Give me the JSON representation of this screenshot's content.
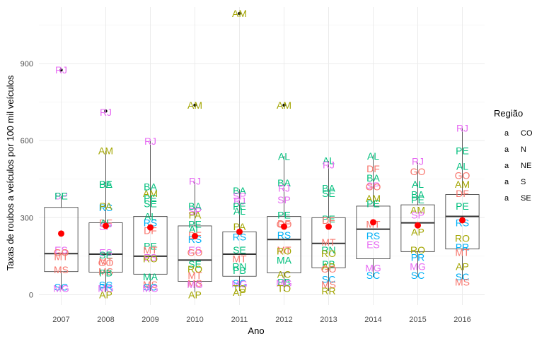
{
  "chart_data": {
    "type": "box",
    "xlabel": "Ano",
    "ylabel": "Taxas de roubos  a veículos por 100 mil veículos",
    "ylim": [
      -40,
      1120
    ],
    "y_ticks": [
      0,
      300,
      600,
      900
    ],
    "categories": [
      "2007",
      "2008",
      "2009",
      "2010",
      "2011",
      "2012",
      "2013",
      "2014",
      "2015",
      "2016"
    ],
    "grid": true,
    "legend": {
      "title": "Região",
      "position": "right",
      "items": [
        {
          "key": "CO",
          "label": "CO",
          "color": "#F8766D"
        },
        {
          "key": "N",
          "label": "N",
          "color": "#A3A500"
        },
        {
          "key": "NE",
          "label": "NE",
          "color": "#00BF7D"
        },
        {
          "key": "S",
          "label": "S",
          "color": "#00B0F6"
        },
        {
          "key": "SE",
          "label": "SE",
          "color": "#E76BF3"
        }
      ]
    },
    "boxes": [
      {
        "year": "2007",
        "q1": 90,
        "median": 160,
        "q3": 340,
        "whisker_low": 20,
        "whisker_high": 385,
        "mean": 238,
        "outliers": [
          875
        ]
      },
      {
        "year": "2008",
        "q1": 88,
        "median": 158,
        "q3": 280,
        "whisker_low": 10,
        "whisker_high": 560,
        "mean": 268,
        "outliers": [
          715
        ]
      },
      {
        "year": "2009",
        "q1": 80,
        "median": 150,
        "q3": 305,
        "whisker_low": 15,
        "whisker_high": 598,
        "mean": 262,
        "outliers": []
      },
      {
        "year": "2010",
        "q1": 52,
        "median": 135,
        "q3": 268,
        "whisker_low": 10,
        "whisker_high": 440,
        "mean": 228,
        "outliers": [
          738
        ]
      },
      {
        "year": "2011",
        "q1": 72,
        "median": 158,
        "q3": 245,
        "whisker_low": 15,
        "whisker_high": 410,
        "mean": 245,
        "outliers": [
          1095
        ]
      },
      {
        "year": "2012",
        "q1": 85,
        "median": 215,
        "q3": 305,
        "whisker_low": 15,
        "whisker_high": 540,
        "mean": 265,
        "outliers": [
          738
        ]
      },
      {
        "year": "2013",
        "q1": 105,
        "median": 200,
        "q3": 300,
        "whisker_low": 15,
        "whisker_high": 520,
        "mean": 265,
        "outliers": []
      },
      {
        "year": "2014",
        "q1": 140,
        "median": 255,
        "q3": 345,
        "whisker_low": 70,
        "whisker_high": 545,
        "mean": 282,
        "outliers": []
      },
      {
        "year": "2015",
        "q1": 168,
        "median": 280,
        "q3": 350,
        "whisker_low": 70,
        "whisker_high": 515,
        "mean": 270,
        "outliers": []
      },
      {
        "year": "2016",
        "q1": 178,
        "median": 305,
        "q3": 390,
        "whisker_low": 60,
        "whisker_high": 648,
        "mean": 290,
        "outliers": []
      }
    ],
    "points": [
      {
        "year": "2007",
        "state": "RJ",
        "region": "SE",
        "value": 875
      },
      {
        "year": "2007",
        "state": "SP",
        "region": "SE",
        "value": 385
      },
      {
        "year": "2007",
        "state": "PE",
        "region": "NE",
        "value": 385
      },
      {
        "year": "2007",
        "state": "ES",
        "region": "SE",
        "value": 175
      },
      {
        "year": "2007",
        "state": "MT",
        "region": "CO",
        "value": 148
      },
      {
        "year": "2007",
        "state": "GO",
        "region": "CO",
        "value": 165
      },
      {
        "year": "2007",
        "state": "MS",
        "region": "CO",
        "value": 98
      },
      {
        "year": "2007",
        "state": "SC",
        "region": "S",
        "value": 30
      },
      {
        "year": "2007",
        "state": "MG",
        "region": "SE",
        "value": 25
      },
      {
        "year": "2008",
        "state": "RJ",
        "region": "SE",
        "value": 710
      },
      {
        "year": "2008",
        "state": "AM",
        "region": "N",
        "value": 560
      },
      {
        "year": "2008",
        "state": "BA",
        "region": "NE",
        "value": 430
      },
      {
        "year": "2008",
        "state": "PE",
        "region": "NE",
        "value": 430
      },
      {
        "year": "2008",
        "state": "RS",
        "region": "S",
        "value": 340
      },
      {
        "year": "2008",
        "state": "PA",
        "region": "N",
        "value": 345
      },
      {
        "year": "2008",
        "state": "DF",
        "region": "CO",
        "value": 280
      },
      {
        "year": "2008",
        "state": "AL",
        "region": "NE",
        "value": 280
      },
      {
        "year": "2008",
        "state": "SP",
        "region": "SE",
        "value": 265
      },
      {
        "year": "2008",
        "state": "ES",
        "region": "SE",
        "value": 165
      },
      {
        "year": "2008",
        "state": "SE",
        "region": "NE",
        "value": 155
      },
      {
        "year": "2008",
        "state": "MT",
        "region": "CO",
        "value": 130
      },
      {
        "year": "2008",
        "state": "GO",
        "region": "CO",
        "value": 125
      },
      {
        "year": "2008",
        "state": "MS",
        "region": "CO",
        "value": 90
      },
      {
        "year": "2008",
        "state": "PB",
        "region": "NE",
        "value": 85
      },
      {
        "year": "2008",
        "state": "SC",
        "region": "S",
        "value": 38
      },
      {
        "year": "2008",
        "state": "PR",
        "region": "S",
        "value": 30
      },
      {
        "year": "2008",
        "state": "MG",
        "region": "SE",
        "value": 25
      },
      {
        "year": "2008",
        "state": "AP",
        "region": "N",
        "value": 0
      },
      {
        "year": "2009",
        "state": "RJ",
        "region": "SE",
        "value": 598
      },
      {
        "year": "2009",
        "state": "BA",
        "region": "NE",
        "value": 420
      },
      {
        "year": "2009",
        "state": "AM",
        "region": "N",
        "value": 395
      },
      {
        "year": "2009",
        "state": "SE",
        "region": "NE",
        "value": 355
      },
      {
        "year": "2009",
        "state": "PE",
        "region": "NE",
        "value": 375
      },
      {
        "year": "2009",
        "state": "AL",
        "region": "NE",
        "value": 305
      },
      {
        "year": "2009",
        "state": "RS",
        "region": "S",
        "value": 280
      },
      {
        "year": "2009",
        "state": "DF",
        "region": "CO",
        "value": 250
      },
      {
        "year": "2009",
        "state": "PE",
        "region": "NE",
        "value": 190
      },
      {
        "year": "2009",
        "state": "MT",
        "region": "CO",
        "value": 175
      },
      {
        "year": "2009",
        "state": "ES",
        "region": "SE",
        "value": 145
      },
      {
        "year": "2009",
        "state": "RO",
        "region": "N",
        "value": 140
      },
      {
        "year": "2009",
        "state": "MA",
        "region": "NE",
        "value": 70
      },
      {
        "year": "2009",
        "state": "MS",
        "region": "CO",
        "value": 40
      },
      {
        "year": "2009",
        "state": "SC",
        "region": "S",
        "value": 30
      },
      {
        "year": "2009",
        "state": "MG",
        "region": "SE",
        "value": 25
      },
      {
        "year": "2010",
        "state": "AM",
        "region": "N",
        "value": 738
      },
      {
        "year": "2010",
        "state": "RJ",
        "region": "SE",
        "value": 442
      },
      {
        "year": "2010",
        "state": "BA",
        "region": "NE",
        "value": 345
      },
      {
        "year": "2010",
        "state": "SP",
        "region": "SE",
        "value": 325
      },
      {
        "year": "2010",
        "state": "PA",
        "region": "N",
        "value": 310
      },
      {
        "year": "2010",
        "state": "PE",
        "region": "NE",
        "value": 275
      },
      {
        "year": "2010",
        "state": "AL",
        "region": "NE",
        "value": 255
      },
      {
        "year": "2010",
        "state": "DF",
        "region": "CO",
        "value": 232
      },
      {
        "year": "2010",
        "state": "RS",
        "region": "S",
        "value": 215
      },
      {
        "year": "2010",
        "state": "ES",
        "region": "SE",
        "value": 175
      },
      {
        "year": "2010",
        "state": "GO",
        "region": "CO",
        "value": 165
      },
      {
        "year": "2010",
        "state": "SE",
        "region": "NE",
        "value": 120
      },
      {
        "year": "2010",
        "state": "RO",
        "region": "N",
        "value": 100
      },
      {
        "year": "2010",
        "state": "MT",
        "region": "CO",
        "value": 75
      },
      {
        "year": "2010",
        "state": "MS",
        "region": "CO",
        "value": 45
      },
      {
        "year": "2010",
        "state": "MG",
        "region": "SE",
        "value": 40
      },
      {
        "year": "2010",
        "state": "AP",
        "region": "N",
        "value": 0
      },
      {
        "year": "2011",
        "state": "AM",
        "region": "N",
        "value": 1095
      },
      {
        "year": "2011",
        "state": "BA",
        "region": "NE",
        "value": 405
      },
      {
        "year": "2011",
        "state": "SP",
        "region": "SE",
        "value": 385
      },
      {
        "year": "2011",
        "state": "RJ",
        "region": "SE",
        "value": 365
      },
      {
        "year": "2011",
        "state": "PE",
        "region": "NE",
        "value": 345
      },
      {
        "year": "2011",
        "state": "AL",
        "region": "NE",
        "value": 325
      },
      {
        "year": "2011",
        "state": "PA",
        "region": "N",
        "value": 265
      },
      {
        "year": "2011",
        "state": "RS",
        "region": "S",
        "value": 225
      },
      {
        "year": "2011",
        "state": "SE",
        "region": "NE",
        "value": 175
      },
      {
        "year": "2011",
        "state": "MT",
        "region": "CO",
        "value": 140
      },
      {
        "year": "2011",
        "state": "RN",
        "region": "NE",
        "value": 110
      },
      {
        "year": "2011",
        "state": "PB",
        "region": "NE",
        "value": 95
      },
      {
        "year": "2011",
        "state": "SC",
        "region": "S",
        "value": 45
      },
      {
        "year": "2011",
        "state": "MG",
        "region": "SE",
        "value": 42
      },
      {
        "year": "2011",
        "state": "TO",
        "region": "N",
        "value": 25
      },
      {
        "year": "2011",
        "state": "AP",
        "region": "N",
        "value": 10
      },
      {
        "year": "2012",
        "state": "AM",
        "region": "N",
        "value": 738
      },
      {
        "year": "2012",
        "state": "AL",
        "region": "NE",
        "value": 538
      },
      {
        "year": "2012",
        "state": "BA",
        "region": "NE",
        "value": 435
      },
      {
        "year": "2012",
        "state": "RJ",
        "region": "SE",
        "value": 415
      },
      {
        "year": "2012",
        "state": "SP",
        "region": "SE",
        "value": 370
      },
      {
        "year": "2012",
        "state": "PE",
        "region": "NE",
        "value": 310
      },
      {
        "year": "2012",
        "state": "DF",
        "region": "CO",
        "value": 278
      },
      {
        "year": "2012",
        "state": "GO",
        "region": "CO",
        "value": 275
      },
      {
        "year": "2012",
        "state": "RS",
        "region": "S",
        "value": 232
      },
      {
        "year": "2012",
        "state": "MT",
        "region": "CO",
        "value": 175
      },
      {
        "year": "2012",
        "state": "RO",
        "region": "N",
        "value": 170
      },
      {
        "year": "2012",
        "state": "MA",
        "region": "NE",
        "value": 135
      },
      {
        "year": "2012",
        "state": "AC",
        "region": "N",
        "value": 80
      },
      {
        "year": "2012",
        "state": "PB",
        "region": "NE",
        "value": 50
      },
      {
        "year": "2012",
        "state": "MG",
        "region": "SE",
        "value": 45
      },
      {
        "year": "2012",
        "state": "TO",
        "region": "N",
        "value": 25
      },
      {
        "year": "2013",
        "state": "AL",
        "region": "NE",
        "value": 522
      },
      {
        "year": "2013",
        "state": "RJ",
        "region": "SE",
        "value": 505
      },
      {
        "year": "2013",
        "state": "BA",
        "region": "NE",
        "value": 415
      },
      {
        "year": "2013",
        "state": "SE",
        "region": "NE",
        "value": 395
      },
      {
        "year": "2013",
        "state": "PE",
        "region": "NE",
        "value": 295
      },
      {
        "year": "2013",
        "state": "DF",
        "region": "CO",
        "value": 290
      },
      {
        "year": "2013",
        "state": "MT",
        "region": "CO",
        "value": 205
      },
      {
        "year": "2013",
        "state": "RN",
        "region": "NE",
        "value": 175
      },
      {
        "year": "2013",
        "state": "RO",
        "region": "N",
        "value": 160
      },
      {
        "year": "2013",
        "state": "PB",
        "region": "NE",
        "value": 120
      },
      {
        "year": "2013",
        "state": "AP",
        "region": "N",
        "value": 110
      },
      {
        "year": "2013",
        "state": "GO",
        "region": "CO",
        "value": 100
      },
      {
        "year": "2013",
        "state": "SC",
        "region": "S",
        "value": 60
      },
      {
        "year": "2013",
        "state": "MS",
        "region": "CO",
        "value": 40
      },
      {
        "year": "2013",
        "state": "RR",
        "region": "N",
        "value": 15
      },
      {
        "year": "2014",
        "state": "AL",
        "region": "NE",
        "value": 540
      },
      {
        "year": "2014",
        "state": "DF",
        "region": "CO",
        "value": 490
      },
      {
        "year": "2014",
        "state": "BA",
        "region": "NE",
        "value": 455
      },
      {
        "year": "2014",
        "state": "SP",
        "region": "SE",
        "value": 425
      },
      {
        "year": "2014",
        "state": "GO",
        "region": "CO",
        "value": 420
      },
      {
        "year": "2014",
        "state": "AM",
        "region": "N",
        "value": 375
      },
      {
        "year": "2014",
        "state": "PE",
        "region": "NE",
        "value": 355
      },
      {
        "year": "2014",
        "state": "MT",
        "region": "CO",
        "value": 275
      },
      {
        "year": "2014",
        "state": "RS",
        "region": "S",
        "value": 230
      },
      {
        "year": "2014",
        "state": "ES",
        "region": "SE",
        "value": 195
      },
      {
        "year": "2014",
        "state": "MG",
        "region": "SE",
        "value": 105
      },
      {
        "year": "2014",
        "state": "SC",
        "region": "S",
        "value": 75
      },
      {
        "year": "2015",
        "state": "RJ",
        "region": "SE",
        "value": 520
      },
      {
        "year": "2015",
        "state": "GO",
        "region": "CO",
        "value": 480
      },
      {
        "year": "2015",
        "state": "AL",
        "region": "NE",
        "value": 430
      },
      {
        "year": "2015",
        "state": "BA",
        "region": "NE",
        "value": 390
      },
      {
        "year": "2015",
        "state": "PE",
        "region": "NE",
        "value": 370
      },
      {
        "year": "2015",
        "state": "AM",
        "region": "N",
        "value": 330
      },
      {
        "year": "2015",
        "state": "SP",
        "region": "SE",
        "value": 310
      },
      {
        "year": "2015",
        "state": "AP",
        "region": "N",
        "value": 245
      },
      {
        "year": "2015",
        "state": "RO",
        "region": "N",
        "value": 175
      },
      {
        "year": "2015",
        "state": "PR",
        "region": "S",
        "value": 145
      },
      {
        "year": "2015",
        "state": "MG",
        "region": "SE",
        "value": 110
      },
      {
        "year": "2015",
        "state": "SC",
        "region": "S",
        "value": 75
      },
      {
        "year": "2016",
        "state": "RJ",
        "region": "SE",
        "value": 648
      },
      {
        "year": "2016",
        "state": "PE",
        "region": "NE",
        "value": 560
      },
      {
        "year": "2016",
        "state": "AL",
        "region": "NE",
        "value": 500
      },
      {
        "year": "2016",
        "state": "GO",
        "region": "CO",
        "value": 465
      },
      {
        "year": "2016",
        "state": "AM",
        "region": "N",
        "value": 430
      },
      {
        "year": "2016",
        "state": "DF",
        "region": "CO",
        "value": 395
      },
      {
        "year": "2016",
        "state": "PE",
        "region": "NE",
        "value": 345
      },
      {
        "year": "2016",
        "state": "RS",
        "region": "S",
        "value": 280
      },
      {
        "year": "2016",
        "state": "RO",
        "region": "N",
        "value": 220
      },
      {
        "year": "2016",
        "state": "PR",
        "region": "S",
        "value": 185
      },
      {
        "year": "2016",
        "state": "MT",
        "region": "CO",
        "value": 165
      },
      {
        "year": "2016",
        "state": "AP",
        "region": "N",
        "value": 110
      },
      {
        "year": "2016",
        "state": "SC",
        "region": "S",
        "value": 70
      },
      {
        "year": "2016",
        "state": "MS",
        "region": "CO",
        "value": 50
      }
    ]
  }
}
